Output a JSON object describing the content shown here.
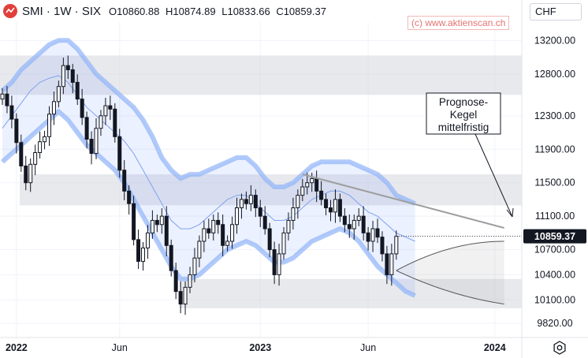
{
  "header": {
    "symbol": "SMI · 1W · SIX",
    "open": "O10860.88",
    "high": "H10874.89",
    "low": "L10833.66",
    "close": "C10859.37"
  },
  "currency_label": "CHF",
  "watermark": "(c) www.aktienscan.ch",
  "colors": {
    "accent": "#2962ff",
    "band": "#bbdefb",
    "zone": "#d1d4dc",
    "candle": "#131722",
    "price_badge": "#131722"
  },
  "chart_data": {
    "type": "candlestick",
    "ylim": [
      9650,
      13420
    ],
    "y_ticks": [
      13200,
      12800,
      12300,
      11900,
      11500,
      11100,
      10700,
      10400,
      10100,
      9820
    ],
    "y_tick_labels": [
      "13200.00",
      "12800.00",
      "12300.00",
      "11900.00",
      "11500.00",
      "11100.00",
      "10700.00",
      "10400.00",
      "10100.00",
      "9820.00"
    ],
    "x_tick_labels": [
      "2022",
      "Jun",
      "2023",
      "Jun",
      "2024"
    ],
    "x_ticks_week_index": [
      3,
      25,
      55,
      78,
      105
    ],
    "last_price": 10859.37,
    "last_price_label": "10859.37",
    "annotation": "Prognose-\nKegel\nmittelfristig",
    "zones": [
      {
        "low": 12550,
        "high": 13020
      },
      {
        "low": 11230,
        "high": 11600
      },
      {
        "low": 10000,
        "high": 10350
      }
    ],
    "closes": [
      12560,
      12420,
      12260,
      11980,
      11700,
      11500,
      11720,
      11860,
      11990,
      12050,
      12320,
      12470,
      12650,
      12900,
      12850,
      12700,
      12500,
      12280,
      12020,
      11850,
      12150,
      12300,
      12420,
      12380,
      12050,
      11650,
      11400,
      11250,
      10820,
      10560,
      10720,
      10900,
      11050,
      11000,
      11100,
      10750,
      10450,
      10200,
      10050,
      10250,
      10400,
      10600,
      10800,
      10950,
      10900,
      11050,
      11000,
      10750,
      10800,
      11000,
      11200,
      11300,
      11250,
      11350,
      11200,
      11100,
      10950,
      10700,
      10400,
      10650,
      10900,
      11050,
      11200,
      11350,
      11450,
      11500,
      11550,
      11400,
      11300,
      11200,
      11150,
      11300,
      11100,
      11000,
      10950,
      11050,
      11100,
      10900,
      10800,
      10950,
      10850,
      10650,
      10400,
      10650,
      10859.37
    ],
    "upper_band": [
      12600,
      12700,
      12850,
      12950,
      13050,
      13150,
      13200,
      13200,
      13100,
      12950,
      12800,
      12700,
      12600,
      12500,
      12400,
      12250,
      12050,
      11800,
      11650,
      11550,
      11600,
      11600,
      11650,
      11700,
      11750,
      11800,
      11800,
      11700,
      11550,
      11450,
      11450,
      11500,
      11600,
      11700,
      11750,
      11750,
      11750,
      11750,
      11700,
      11650,
      11600,
      11500,
      11350,
      11300,
      11250
    ],
    "middle_band": [
      12150,
      12300,
      12450,
      12600,
      12700,
      12750,
      12780,
      12700,
      12550,
      12400,
      12300,
      12200,
      12100,
      12000,
      11850,
      11650,
      11450,
      11250,
      11050,
      10950,
      10950,
      11000,
      11100,
      11200,
      11300,
      11350,
      11350,
      11250,
      11150,
      11050,
      11050,
      11100,
      11200,
      11300,
      11350,
      11400,
      11400,
      11350,
      11250,
      11150,
      11100,
      11000,
      10900,
      10850,
      10800
    ],
    "lower_band": [
      11750,
      11850,
      11950,
      12050,
      12150,
      12250,
      12350,
      12250,
      12100,
      11950,
      11850,
      11750,
      11650,
      11500,
      11300,
      11100,
      10900,
      10700,
      10500,
      10350,
      10350,
      10400,
      10500,
      10600,
      10700,
      10750,
      10800,
      10750,
      10650,
      10550,
      10550,
      10600,
      10700,
      10800,
      10850,
      10900,
      10950,
      10900,
      10800,
      10650,
      10500,
      10400,
      10300,
      10200,
      10150
    ],
    "trendline": {
      "from": [
        64,
        11600
      ],
      "to": [
        107,
        10960
      ]
    },
    "forecast_cone": {
      "start": [
        84,
        10450
      ],
      "upper_end": [
        107,
        10800
      ],
      "lower_end": [
        107,
        10050
      ]
    }
  }
}
